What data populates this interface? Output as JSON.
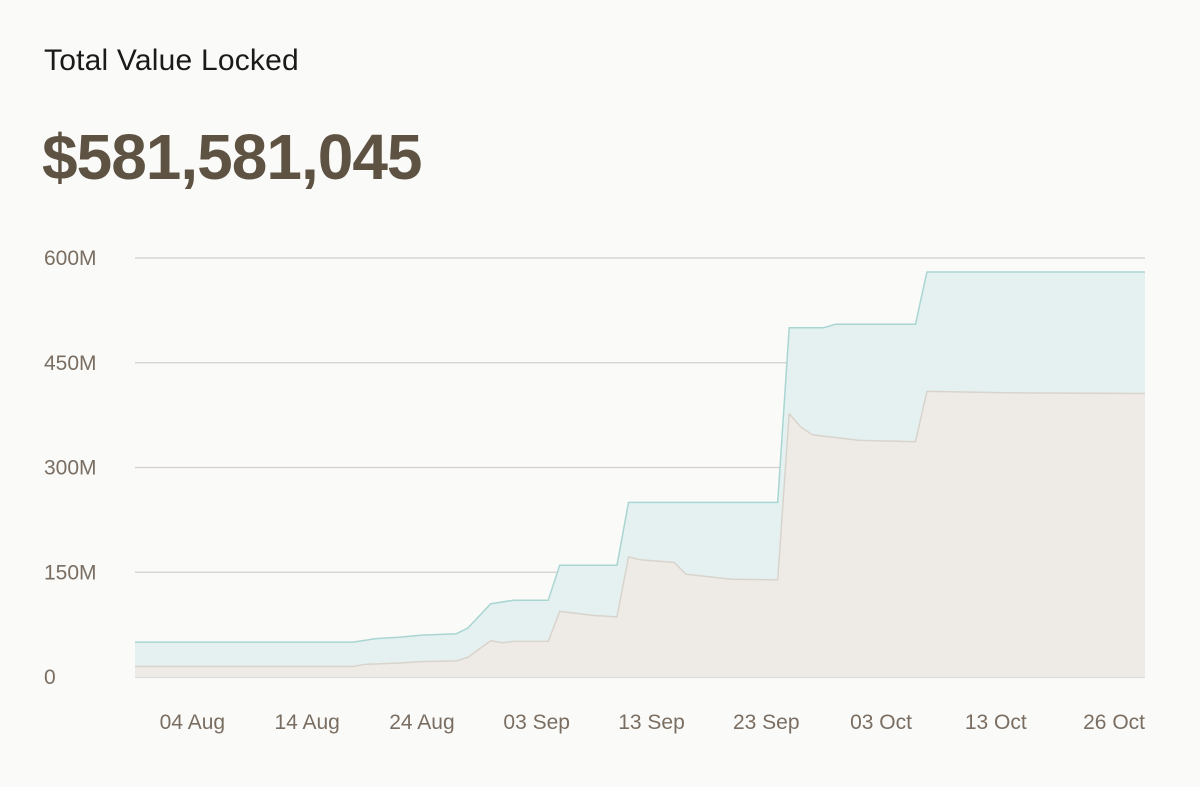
{
  "header": {
    "title": "Total Value Locked",
    "value": "$581,581,045"
  },
  "colors": {
    "upper_fill": "#e4f1f0",
    "upper_line": "#a9d6d2",
    "lower_fill": "#eeebe7",
    "lower_line": "#d9d3cc",
    "grid": "#d4d0cc",
    "axis_text": "#7a6e62"
  },
  "chart_data": {
    "type": "area",
    "title": "Total Value Locked",
    "xlabel": "",
    "ylabel": "",
    "ylim": [
      0,
      600
    ],
    "xlim": [
      "2023-07-30",
      "2023-10-26"
    ],
    "grid": true,
    "y_ticks": [
      {
        "value": 0,
        "label": "0"
      },
      {
        "value": 150,
        "label": "150M"
      },
      {
        "value": 300,
        "label": "300M"
      },
      {
        "value": 450,
        "label": "450M"
      },
      {
        "value": 600,
        "label": "600M"
      }
    ],
    "x_ticks": [
      {
        "date": "2023-08-04",
        "label": "04 Aug"
      },
      {
        "date": "2023-08-14",
        "label": "14 Aug"
      },
      {
        "date": "2023-08-24",
        "label": "24 Aug"
      },
      {
        "date": "2023-09-03",
        "label": "03 Sep"
      },
      {
        "date": "2023-09-13",
        "label": "13 Sep"
      },
      {
        "date": "2023-09-23",
        "label": "23 Sep"
      },
      {
        "date": "2023-10-03",
        "label": "03 Oct"
      },
      {
        "date": "2023-10-13",
        "label": "13 Oct"
      },
      {
        "date": "2023-10-26",
        "label": "26 Oct"
      }
    ],
    "series": [
      {
        "points": [
          [
            "2023-07-30",
            50
          ],
          [
            "2023-08-18",
            50
          ],
          [
            "2023-08-20",
            55
          ],
          [
            "2023-08-22",
            57
          ],
          [
            "2023-08-24",
            60
          ],
          [
            "2023-08-27",
            62
          ],
          [
            "2023-08-28",
            70
          ],
          [
            "2023-08-30",
            105
          ],
          [
            "2023-09-01",
            110
          ],
          [
            "2023-09-04",
            110
          ],
          [
            "2023-09-05",
            160
          ],
          [
            "2023-09-10",
            160
          ],
          [
            "2023-09-11",
            250
          ],
          [
            "2023-09-24",
            250
          ],
          [
            "2023-09-25",
            500
          ],
          [
            "2023-09-28",
            500
          ],
          [
            "2023-09-29",
            505
          ],
          [
            "2023-10-06",
            505
          ],
          [
            "2023-10-07",
            580
          ],
          [
            "2023-10-26",
            580
          ]
        ]
      },
      {
        "points": [
          [
            "2023-07-30",
            15
          ],
          [
            "2023-08-18",
            15
          ],
          [
            "2023-08-19",
            18
          ],
          [
            "2023-08-22",
            20
          ],
          [
            "2023-08-24",
            22
          ],
          [
            "2023-08-27",
            23
          ],
          [
            "2023-08-28",
            28
          ],
          [
            "2023-08-30",
            52
          ],
          [
            "2023-08-31",
            49
          ],
          [
            "2023-09-01",
            51
          ],
          [
            "2023-09-04",
            51
          ],
          [
            "2023-09-05",
            94
          ],
          [
            "2023-09-08",
            88
          ],
          [
            "2023-09-10",
            86
          ],
          [
            "2023-09-11",
            172
          ],
          [
            "2023-09-12",
            168
          ],
          [
            "2023-09-15",
            164
          ],
          [
            "2023-09-16",
            147
          ],
          [
            "2023-09-20",
            140
          ],
          [
            "2023-09-24",
            139
          ],
          [
            "2023-09-25",
            377
          ],
          [
            "2023-09-26",
            358
          ],
          [
            "2023-09-27",
            347
          ],
          [
            "2023-10-01",
            339
          ],
          [
            "2023-10-06",
            337
          ],
          [
            "2023-10-07",
            409
          ],
          [
            "2023-10-14",
            407
          ],
          [
            "2023-10-26",
            406
          ]
        ]
      }
    ]
  }
}
